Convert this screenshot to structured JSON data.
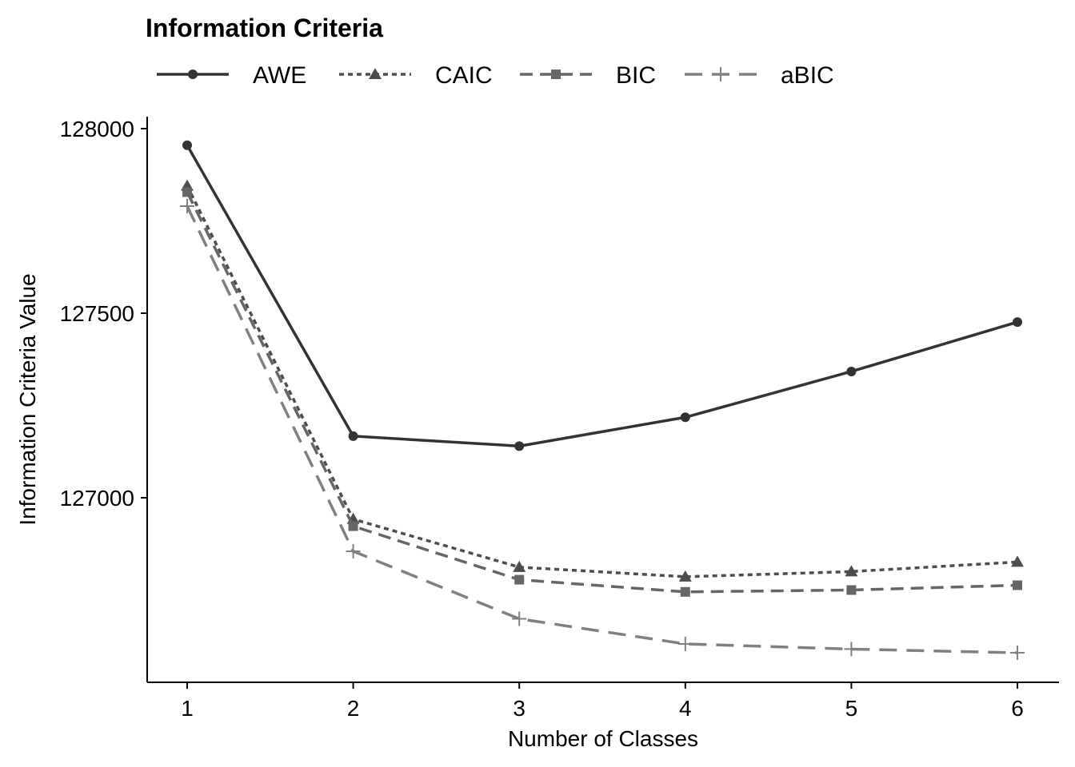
{
  "chart_data": {
    "type": "line",
    "title": "Information Criteria",
    "xlabel": "Number of Classes",
    "ylabel": "Information Criteria Value",
    "x": [
      1,
      2,
      3,
      4,
      5,
      6
    ],
    "ylim": [
      126540,
      128030
    ],
    "yticks": [
      127000,
      127500,
      128000
    ],
    "grid": false,
    "legend_position": "top",
    "series": [
      {
        "name": "AWE",
        "values": [
          127955,
          127167,
          127140,
          127218,
          127342,
          127476
        ],
        "color": "#333333",
        "dash": "solid",
        "marker": "circle"
      },
      {
        "name": "CAIC",
        "values": [
          127845,
          126942,
          126812,
          126786,
          126800,
          126826
        ],
        "color": "#4d4d4d",
        "dash": "dotted",
        "marker": "triangle"
      },
      {
        "name": "BIC",
        "values": [
          127828,
          126923,
          126778,
          126745,
          126750,
          126763
        ],
        "color": "#666666",
        "dash": "dashed",
        "marker": "square"
      },
      {
        "name": "aBIC",
        "values": [
          127790,
          126855,
          126672,
          126604,
          126590,
          126580
        ],
        "color": "#808080",
        "dash": "longdash",
        "marker": "plus"
      }
    ]
  }
}
